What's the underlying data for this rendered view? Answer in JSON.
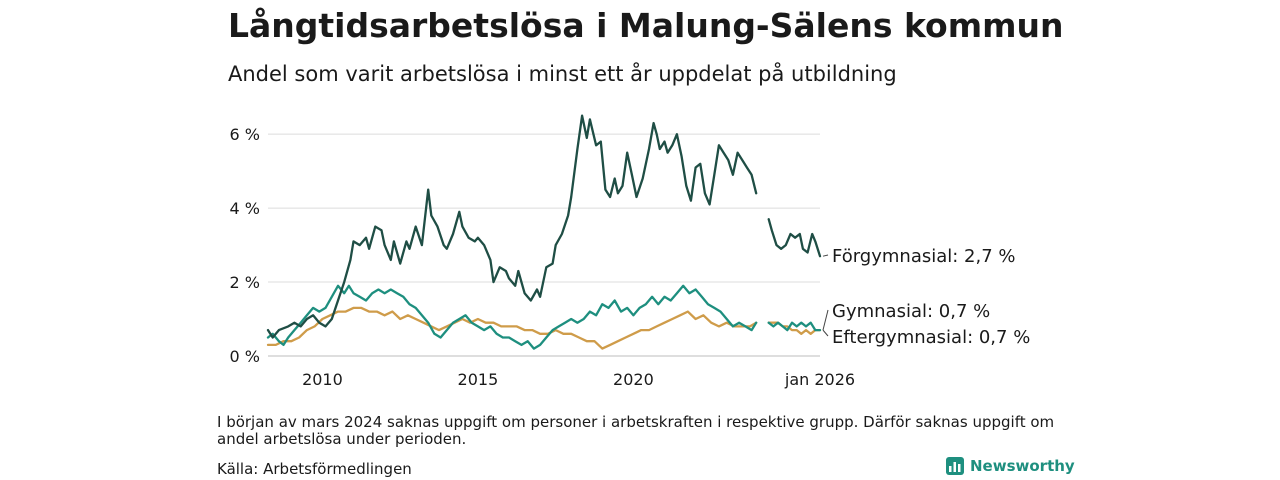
{
  "title": "Långtidsarbetslösa i Malung-Sälens kommun",
  "subtitle": "Andel som varit arbetslösa i minst ett år uppdelat på utbildning",
  "note": "I början av mars 2024 saknas uppgift om personer i arbetskraften i respektive grupp. Därför saknas uppgift om andel arbetslösa under perioden.",
  "source": "Källa: Arbetsförmedlingen",
  "brand": "Newsworthy",
  "chart_data": {
    "type": "line",
    "title": "Långtidsarbetslösa i Malung-Sälens kommun",
    "xlabel": "",
    "ylabel": "",
    "xlim": [
      2008.25,
      2026.0
    ],
    "ylim": [
      0,
      6.6
    ],
    "yticks": [
      0,
      2,
      4,
      6
    ],
    "ytick_labels": [
      "0 %",
      "2 %",
      "4 %",
      "6 %"
    ],
    "xticks": [
      2010,
      2015,
      2020,
      2026.0
    ],
    "xtick_labels": [
      "2010",
      "2015",
      "2020",
      "jan 2026"
    ],
    "grid": true,
    "series": [
      {
        "name": "Förgymnasial",
        "label": "Förgymnasial: 2,7 %",
        "color": "#1f4e45",
        "points": [
          [
            2008.25,
            0.7
          ],
          [
            2008.4,
            0.5
          ],
          [
            2008.6,
            0.7
          ],
          [
            2008.9,
            0.8
          ],
          [
            2009.1,
            0.9
          ],
          [
            2009.3,
            0.8
          ],
          [
            2009.5,
            1.0
          ],
          [
            2009.7,
            1.1
          ],
          [
            2009.9,
            0.9
          ],
          [
            2010.1,
            0.8
          ],
          [
            2010.3,
            1.0
          ],
          [
            2010.5,
            1.5
          ],
          [
            2010.7,
            2.0
          ],
          [
            2010.9,
            2.6
          ],
          [
            2011.0,
            3.1
          ],
          [
            2011.2,
            3.0
          ],
          [
            2011.4,
            3.2
          ],
          [
            2011.5,
            2.9
          ],
          [
            2011.7,
            3.5
          ],
          [
            2011.9,
            3.4
          ],
          [
            2012.0,
            3.0
          ],
          [
            2012.2,
            2.6
          ],
          [
            2012.3,
            3.1
          ],
          [
            2012.5,
            2.5
          ],
          [
            2012.7,
            3.1
          ],
          [
            2012.8,
            2.9
          ],
          [
            2013.0,
            3.5
          ],
          [
            2013.2,
            3.0
          ],
          [
            2013.4,
            4.5
          ],
          [
            2013.5,
            3.8
          ],
          [
            2013.7,
            3.5
          ],
          [
            2013.9,
            3.0
          ],
          [
            2014.0,
            2.9
          ],
          [
            2014.2,
            3.3
          ],
          [
            2014.4,
            3.9
          ],
          [
            2014.5,
            3.5
          ],
          [
            2014.7,
            3.2
          ],
          [
            2014.9,
            3.1
          ],
          [
            2015.0,
            3.2
          ],
          [
            2015.2,
            3.0
          ],
          [
            2015.4,
            2.6
          ],
          [
            2015.5,
            2.0
          ],
          [
            2015.7,
            2.4
          ],
          [
            2015.9,
            2.3
          ],
          [
            2016.0,
            2.1
          ],
          [
            2016.2,
            1.9
          ],
          [
            2016.3,
            2.3
          ],
          [
            2016.5,
            1.7
          ],
          [
            2016.7,
            1.5
          ],
          [
            2016.9,
            1.8
          ],
          [
            2017.0,
            1.6
          ],
          [
            2017.2,
            2.4
          ],
          [
            2017.4,
            2.5
          ],
          [
            2017.5,
            3.0
          ],
          [
            2017.7,
            3.3
          ],
          [
            2017.9,
            3.8
          ],
          [
            2018.0,
            4.3
          ],
          [
            2018.2,
            5.6
          ],
          [
            2018.35,
            6.5
          ],
          [
            2018.5,
            5.9
          ],
          [
            2018.6,
            6.4
          ],
          [
            2018.8,
            5.7
          ],
          [
            2018.95,
            5.8
          ],
          [
            2019.1,
            4.5
          ],
          [
            2019.25,
            4.3
          ],
          [
            2019.4,
            4.8
          ],
          [
            2019.5,
            4.4
          ],
          [
            2019.65,
            4.6
          ],
          [
            2019.8,
            5.5
          ],
          [
            2019.95,
            4.9
          ],
          [
            2020.1,
            4.3
          ],
          [
            2020.3,
            4.8
          ],
          [
            2020.5,
            5.6
          ],
          [
            2020.65,
            6.3
          ],
          [
            2020.75,
            6.0
          ],
          [
            2020.85,
            5.6
          ],
          [
            2021.0,
            5.8
          ],
          [
            2021.1,
            5.5
          ],
          [
            2021.25,
            5.7
          ],
          [
            2021.4,
            6.0
          ],
          [
            2021.55,
            5.4
          ],
          [
            2021.7,
            4.6
          ],
          [
            2021.85,
            4.2
          ],
          [
            2022.0,
            5.1
          ],
          [
            2022.15,
            5.2
          ],
          [
            2022.3,
            4.4
          ],
          [
            2022.45,
            4.1
          ],
          [
            2022.6,
            4.9
          ],
          [
            2022.75,
            5.7
          ],
          [
            2022.9,
            5.5
          ],
          [
            2023.05,
            5.3
          ],
          [
            2023.2,
            4.9
          ],
          [
            2023.35,
            5.5
          ],
          [
            2023.5,
            5.3
          ],
          [
            2023.65,
            5.1
          ],
          [
            2023.8,
            4.9
          ],
          [
            2023.95,
            4.4
          ],
          null,
          [
            2024.35,
            3.7
          ],
          [
            2024.45,
            3.4
          ],
          [
            2024.6,
            3.0
          ],
          [
            2024.75,
            2.9
          ],
          [
            2024.9,
            3.0
          ],
          [
            2025.05,
            3.3
          ],
          [
            2025.2,
            3.2
          ],
          [
            2025.35,
            3.3
          ],
          [
            2025.45,
            2.9
          ],
          [
            2025.6,
            2.8
          ],
          [
            2025.75,
            3.3
          ],
          [
            2025.85,
            3.1
          ],
          [
            2026.0,
            2.7
          ]
        ]
      },
      {
        "name": "Gymnasial",
        "label": "Gymnasial: 0,7 %",
        "color": "#1e8f7f",
        "points": [
          [
            2008.25,
            0.5
          ],
          [
            2008.4,
            0.6
          ],
          [
            2008.6,
            0.4
          ],
          [
            2008.75,
            0.3
          ],
          [
            2008.9,
            0.5
          ],
          [
            2009.1,
            0.7
          ],
          [
            2009.3,
            0.9
          ],
          [
            2009.5,
            1.1
          ],
          [
            2009.7,
            1.3
          ],
          [
            2009.9,
            1.2
          ],
          [
            2010.1,
            1.3
          ],
          [
            2010.3,
            1.6
          ],
          [
            2010.5,
            1.9
          ],
          [
            2010.7,
            1.7
          ],
          [
            2010.85,
            1.9
          ],
          [
            2011.0,
            1.7
          ],
          [
            2011.2,
            1.6
          ],
          [
            2011.4,
            1.5
          ],
          [
            2011.6,
            1.7
          ],
          [
            2011.8,
            1.8
          ],
          [
            2012.0,
            1.7
          ],
          [
            2012.2,
            1.8
          ],
          [
            2012.4,
            1.7
          ],
          [
            2012.6,
            1.6
          ],
          [
            2012.8,
            1.4
          ],
          [
            2013.0,
            1.3
          ],
          [
            2013.2,
            1.1
          ],
          [
            2013.4,
            0.9
          ],
          [
            2013.6,
            0.6
          ],
          [
            2013.8,
            0.5
          ],
          [
            2014.0,
            0.7
          ],
          [
            2014.2,
            0.9
          ],
          [
            2014.4,
            1.0
          ],
          [
            2014.6,
            1.1
          ],
          [
            2014.8,
            0.9
          ],
          [
            2015.0,
            0.8
          ],
          [
            2015.2,
            0.7
          ],
          [
            2015.4,
            0.8
          ],
          [
            2015.6,
            0.6
          ],
          [
            2015.8,
            0.5
          ],
          [
            2016.0,
            0.5
          ],
          [
            2016.2,
            0.4
          ],
          [
            2016.4,
            0.3
          ],
          [
            2016.6,
            0.4
          ],
          [
            2016.8,
            0.2
          ],
          [
            2017.0,
            0.3
          ],
          [
            2017.2,
            0.5
          ],
          [
            2017.4,
            0.7
          ],
          [
            2017.6,
            0.8
          ],
          [
            2017.8,
            0.9
          ],
          [
            2018.0,
            1.0
          ],
          [
            2018.2,
            0.9
          ],
          [
            2018.4,
            1.0
          ],
          [
            2018.6,
            1.2
          ],
          [
            2018.8,
            1.1
          ],
          [
            2019.0,
            1.4
          ],
          [
            2019.2,
            1.3
          ],
          [
            2019.4,
            1.5
          ],
          [
            2019.6,
            1.2
          ],
          [
            2019.8,
            1.3
          ],
          [
            2020.0,
            1.1
          ],
          [
            2020.2,
            1.3
          ],
          [
            2020.4,
            1.4
          ],
          [
            2020.6,
            1.6
          ],
          [
            2020.8,
            1.4
          ],
          [
            2021.0,
            1.6
          ],
          [
            2021.2,
            1.5
          ],
          [
            2021.4,
            1.7
          ],
          [
            2021.6,
            1.9
          ],
          [
            2021.8,
            1.7
          ],
          [
            2022.0,
            1.8
          ],
          [
            2022.2,
            1.6
          ],
          [
            2022.4,
            1.4
          ],
          [
            2022.6,
            1.3
          ],
          [
            2022.8,
            1.2
          ],
          [
            2023.0,
            1.0
          ],
          [
            2023.2,
            0.8
          ],
          [
            2023.4,
            0.9
          ],
          [
            2023.6,
            0.8
          ],
          [
            2023.8,
            0.7
          ],
          [
            2023.95,
            0.9
          ],
          null,
          [
            2024.35,
            0.9
          ],
          [
            2024.5,
            0.8
          ],
          [
            2024.65,
            0.9
          ],
          [
            2024.8,
            0.8
          ],
          [
            2024.95,
            0.7
          ],
          [
            2025.1,
            0.9
          ],
          [
            2025.25,
            0.8
          ],
          [
            2025.4,
            0.9
          ],
          [
            2025.55,
            0.8
          ],
          [
            2025.7,
            0.9
          ],
          [
            2025.85,
            0.7
          ],
          [
            2026.0,
            0.7
          ]
        ]
      },
      {
        "name": "Eftergymnasial",
        "label": "Eftergymnasial: 0,7 %",
        "color": "#cf9c4a",
        "points": [
          [
            2008.25,
            0.3
          ],
          [
            2008.5,
            0.3
          ],
          [
            2008.75,
            0.4
          ],
          [
            2009.0,
            0.4
          ],
          [
            2009.25,
            0.5
          ],
          [
            2009.5,
            0.7
          ],
          [
            2009.75,
            0.8
          ],
          [
            2010.0,
            1.0
          ],
          [
            2010.25,
            1.1
          ],
          [
            2010.5,
            1.2
          ],
          [
            2010.75,
            1.2
          ],
          [
            2011.0,
            1.3
          ],
          [
            2011.25,
            1.3
          ],
          [
            2011.5,
            1.2
          ],
          [
            2011.75,
            1.2
          ],
          [
            2012.0,
            1.1
          ],
          [
            2012.25,
            1.2
          ],
          [
            2012.5,
            1.0
          ],
          [
            2012.75,
            1.1
          ],
          [
            2013.0,
            1.0
          ],
          [
            2013.25,
            0.9
          ],
          [
            2013.5,
            0.8
          ],
          [
            2013.75,
            0.7
          ],
          [
            2014.0,
            0.8
          ],
          [
            2014.25,
            0.9
          ],
          [
            2014.5,
            1.0
          ],
          [
            2014.75,
            0.9
          ],
          [
            2015.0,
            1.0
          ],
          [
            2015.25,
            0.9
          ],
          [
            2015.5,
            0.9
          ],
          [
            2015.75,
            0.8
          ],
          [
            2016.0,
            0.8
          ],
          [
            2016.25,
            0.8
          ],
          [
            2016.5,
            0.7
          ],
          [
            2016.75,
            0.7
          ],
          [
            2017.0,
            0.6
          ],
          [
            2017.25,
            0.6
          ],
          [
            2017.5,
            0.7
          ],
          [
            2017.75,
            0.6
          ],
          [
            2018.0,
            0.6
          ],
          [
            2018.25,
            0.5
          ],
          [
            2018.5,
            0.4
          ],
          [
            2018.75,
            0.4
          ],
          [
            2019.0,
            0.2
          ],
          [
            2019.25,
            0.3
          ],
          [
            2019.5,
            0.4
          ],
          [
            2019.75,
            0.5
          ],
          [
            2020.0,
            0.6
          ],
          [
            2020.25,
            0.7
          ],
          [
            2020.5,
            0.7
          ],
          [
            2020.75,
            0.8
          ],
          [
            2021.0,
            0.9
          ],
          [
            2021.25,
            1.0
          ],
          [
            2021.5,
            1.1
          ],
          [
            2021.75,
            1.2
          ],
          [
            2022.0,
            1.0
          ],
          [
            2022.25,
            1.1
          ],
          [
            2022.5,
            0.9
          ],
          [
            2022.75,
            0.8
          ],
          [
            2023.0,
            0.9
          ],
          [
            2023.25,
            0.8
          ],
          [
            2023.5,
            0.8
          ],
          [
            2023.75,
            0.8
          ],
          [
            2023.95,
            0.9
          ],
          null,
          [
            2024.35,
            0.9
          ],
          [
            2024.5,
            0.9
          ],
          [
            2024.65,
            0.9
          ],
          [
            2024.8,
            0.8
          ],
          [
            2024.95,
            0.8
          ],
          [
            2025.1,
            0.7
          ],
          [
            2025.25,
            0.7
          ],
          [
            2025.4,
            0.6
          ],
          [
            2025.55,
            0.7
          ],
          [
            2025.7,
            0.6
          ],
          [
            2025.85,
            0.7
          ],
          [
            2026.0,
            0.7
          ]
        ]
      }
    ]
  }
}
